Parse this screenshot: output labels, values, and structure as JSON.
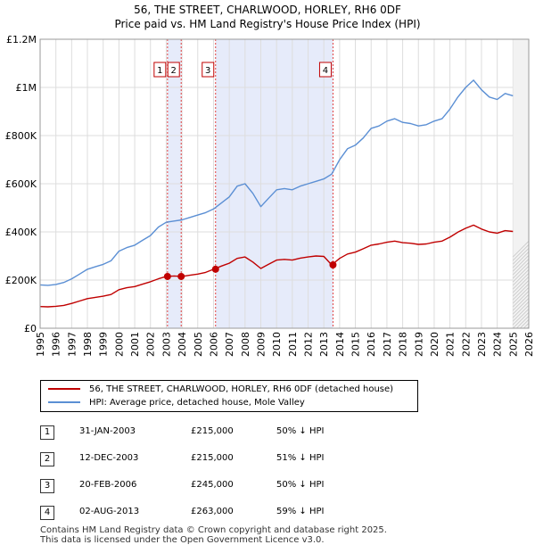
{
  "title": {
    "line1": "56, THE STREET, CHARLWOOD, HORLEY, RH6 0DF",
    "line2": "Price paid vs. HM Land Registry's House Price Index (HPI)"
  },
  "colors": {
    "hpi": "#5b8fd4",
    "price": "#c00000",
    "shade": "#e6ebfa",
    "grid": "#dddddd",
    "vline": "#e04040"
  },
  "legend": {
    "property": "56, THE STREET, CHARLWOOD, HORLEY, RH6 0DF (detached house)",
    "hpi": "HPI: Average price, detached house, Mole Valley"
  },
  "sales": [
    {
      "num": "1",
      "date": "31-JAN-2003",
      "price": "£215,000",
      "hpi": "50% ↓ HPI"
    },
    {
      "num": "2",
      "date": "12-DEC-2003",
      "price": "£215,000",
      "hpi": "51% ↓ HPI"
    },
    {
      "num": "3",
      "date": "20-FEB-2006",
      "price": "£245,000",
      "hpi": "50% ↓ HPI"
    },
    {
      "num": "4",
      "date": "02-AUG-2013",
      "price": "£263,000",
      "hpi": "59% ↓ HPI"
    }
  ],
  "footer": {
    "line1": "Contains HM Land Registry data © Crown copyright and database right 2025.",
    "line2": "This data is licensed under the Open Government Licence v3.0."
  },
  "chart_data": {
    "type": "line",
    "title": "Price paid vs. HM Land Registry's House Price Index (HPI)",
    "xlim": [
      1995,
      2026
    ],
    "ylim": [
      0,
      1200000
    ],
    "x_ticks": [
      "1995",
      "1996",
      "1997",
      "1998",
      "1999",
      "2000",
      "2001",
      "2002",
      "2003",
      "2004",
      "2005",
      "2006",
      "2007",
      "2008",
      "2009",
      "2010",
      "2011",
      "2012",
      "2013",
      "2014",
      "2015",
      "2016",
      "2017",
      "2018",
      "2019",
      "2020",
      "2021",
      "2022",
      "2023",
      "2024",
      "2025",
      "2026"
    ],
    "y_ticks": [
      {
        "value": 0,
        "label": "£0"
      },
      {
        "value": 200000,
        "label": "£200K"
      },
      {
        "value": 400000,
        "label": "£400K"
      },
      {
        "value": 600000,
        "label": "£600K"
      },
      {
        "value": 800000,
        "label": "£800K"
      },
      {
        "value": 1000000,
        "label": "£1M"
      },
      {
        "value": 1200000,
        "label": "£1.2M"
      }
    ],
    "shaded_ranges": [
      [
        2003.08,
        2003.95
      ],
      [
        2006.13,
        2013.58
      ]
    ],
    "projection_start": 2025.0,
    "sale_markers": [
      {
        "label": "1",
        "x": 2003.08,
        "y": 215000
      },
      {
        "label": "2",
        "x": 2003.95,
        "y": 215000
      },
      {
        "label": "3",
        "x": 2006.13,
        "y": 245000
      },
      {
        "label": "4",
        "x": 2013.58,
        "y": 263000
      }
    ],
    "series": [
      {
        "name": "HPI: Average price, detached house, Mole Valley",
        "x": [
          1995.0,
          1995.5,
          1996.0,
          1996.5,
          1997.0,
          1997.5,
          1998.0,
          1998.5,
          1999.0,
          1999.5,
          2000.0,
          2000.5,
          2001.0,
          2001.5,
          2002.0,
          2002.5,
          2003.0,
          2003.5,
          2004.0,
          2004.5,
          2005.0,
          2005.5,
          2006.0,
          2006.5,
          2007.0,
          2007.5,
          2008.0,
          2008.5,
          2009.0,
          2009.5,
          2010.0,
          2010.5,
          2011.0,
          2011.5,
          2012.0,
          2012.5,
          2013.0,
          2013.5,
          2014.0,
          2014.5,
          2015.0,
          2015.5,
          2016.0,
          2016.5,
          2017.0,
          2017.5,
          2018.0,
          2018.5,
          2019.0,
          2019.5,
          2020.0,
          2020.5,
          2021.0,
          2021.5,
          2022.0,
          2022.5,
          2023.0,
          2023.5,
          2024.0,
          2024.5,
          2025.0
        ],
        "y": [
          180000,
          178000,
          182000,
          190000,
          205000,
          225000,
          245000,
          255000,
          265000,
          280000,
          320000,
          335000,
          345000,
          365000,
          385000,
          420000,
          440000,
          445000,
          450000,
          460000,
          470000,
          480000,
          495000,
          520000,
          545000,
          590000,
          600000,
          560000,
          505000,
          540000,
          575000,
          580000,
          575000,
          590000,
          600000,
          610000,
          620000,
          640000,
          700000,
          745000,
          760000,
          790000,
          830000,
          840000,
          860000,
          870000,
          855000,
          850000,
          840000,
          845000,
          860000,
          870000,
          910000,
          960000,
          1000000,
          1030000,
          990000,
          960000,
          950000,
          975000,
          965000
        ]
      },
      {
        "name": "56, THE STREET, CHARLWOOD, HORLEY, RH6 0DF (detached house)",
        "x": [
          1995.0,
          1995.5,
          1996.0,
          1996.5,
          1997.0,
          1997.5,
          1998.0,
          1998.5,
          1999.0,
          1999.5,
          2000.0,
          2000.5,
          2001.0,
          2001.5,
          2002.0,
          2002.5,
          2003.0,
          2003.5,
          2004.0,
          2004.5,
          2005.0,
          2005.5,
          2006.0,
          2006.5,
          2007.0,
          2007.5,
          2008.0,
          2008.5,
          2009.0,
          2009.5,
          2010.0,
          2010.5,
          2011.0,
          2011.5,
          2012.0,
          2012.5,
          2013.0,
          2013.5,
          2014.0,
          2014.5,
          2015.0,
          2015.5,
          2016.0,
          2016.5,
          2017.0,
          2017.5,
          2018.0,
          2018.5,
          2019.0,
          2019.5,
          2020.0,
          2020.5,
          2021.0,
          2021.5,
          2022.0,
          2022.5,
          2023.0,
          2023.5,
          2024.0,
          2024.5,
          2025.0
        ],
        "y": [
          90000,
          89000,
          91000,
          95000,
          103000,
          113000,
          123000,
          128000,
          133000,
          140000,
          160000,
          168000,
          173000,
          183000,
          193000,
          205000,
          215000,
          217000,
          215000,
          220000,
          225000,
          232000,
          245000,
          258000,
          270000,
          290000,
          296000,
          275000,
          248000,
          266000,
          283000,
          286000,
          283000,
          291000,
          296000,
          300000,
          298000,
          263000,
          290000,
          308000,
          316000,
          330000,
          345000,
          350000,
          357000,
          362000,
          355000,
          353000,
          348000,
          350000,
          357000,
          362000,
          378000,
          399000,
          415000,
          428000,
          412000,
          400000,
          395000,
          405000,
          402000
        ]
      }
    ]
  }
}
